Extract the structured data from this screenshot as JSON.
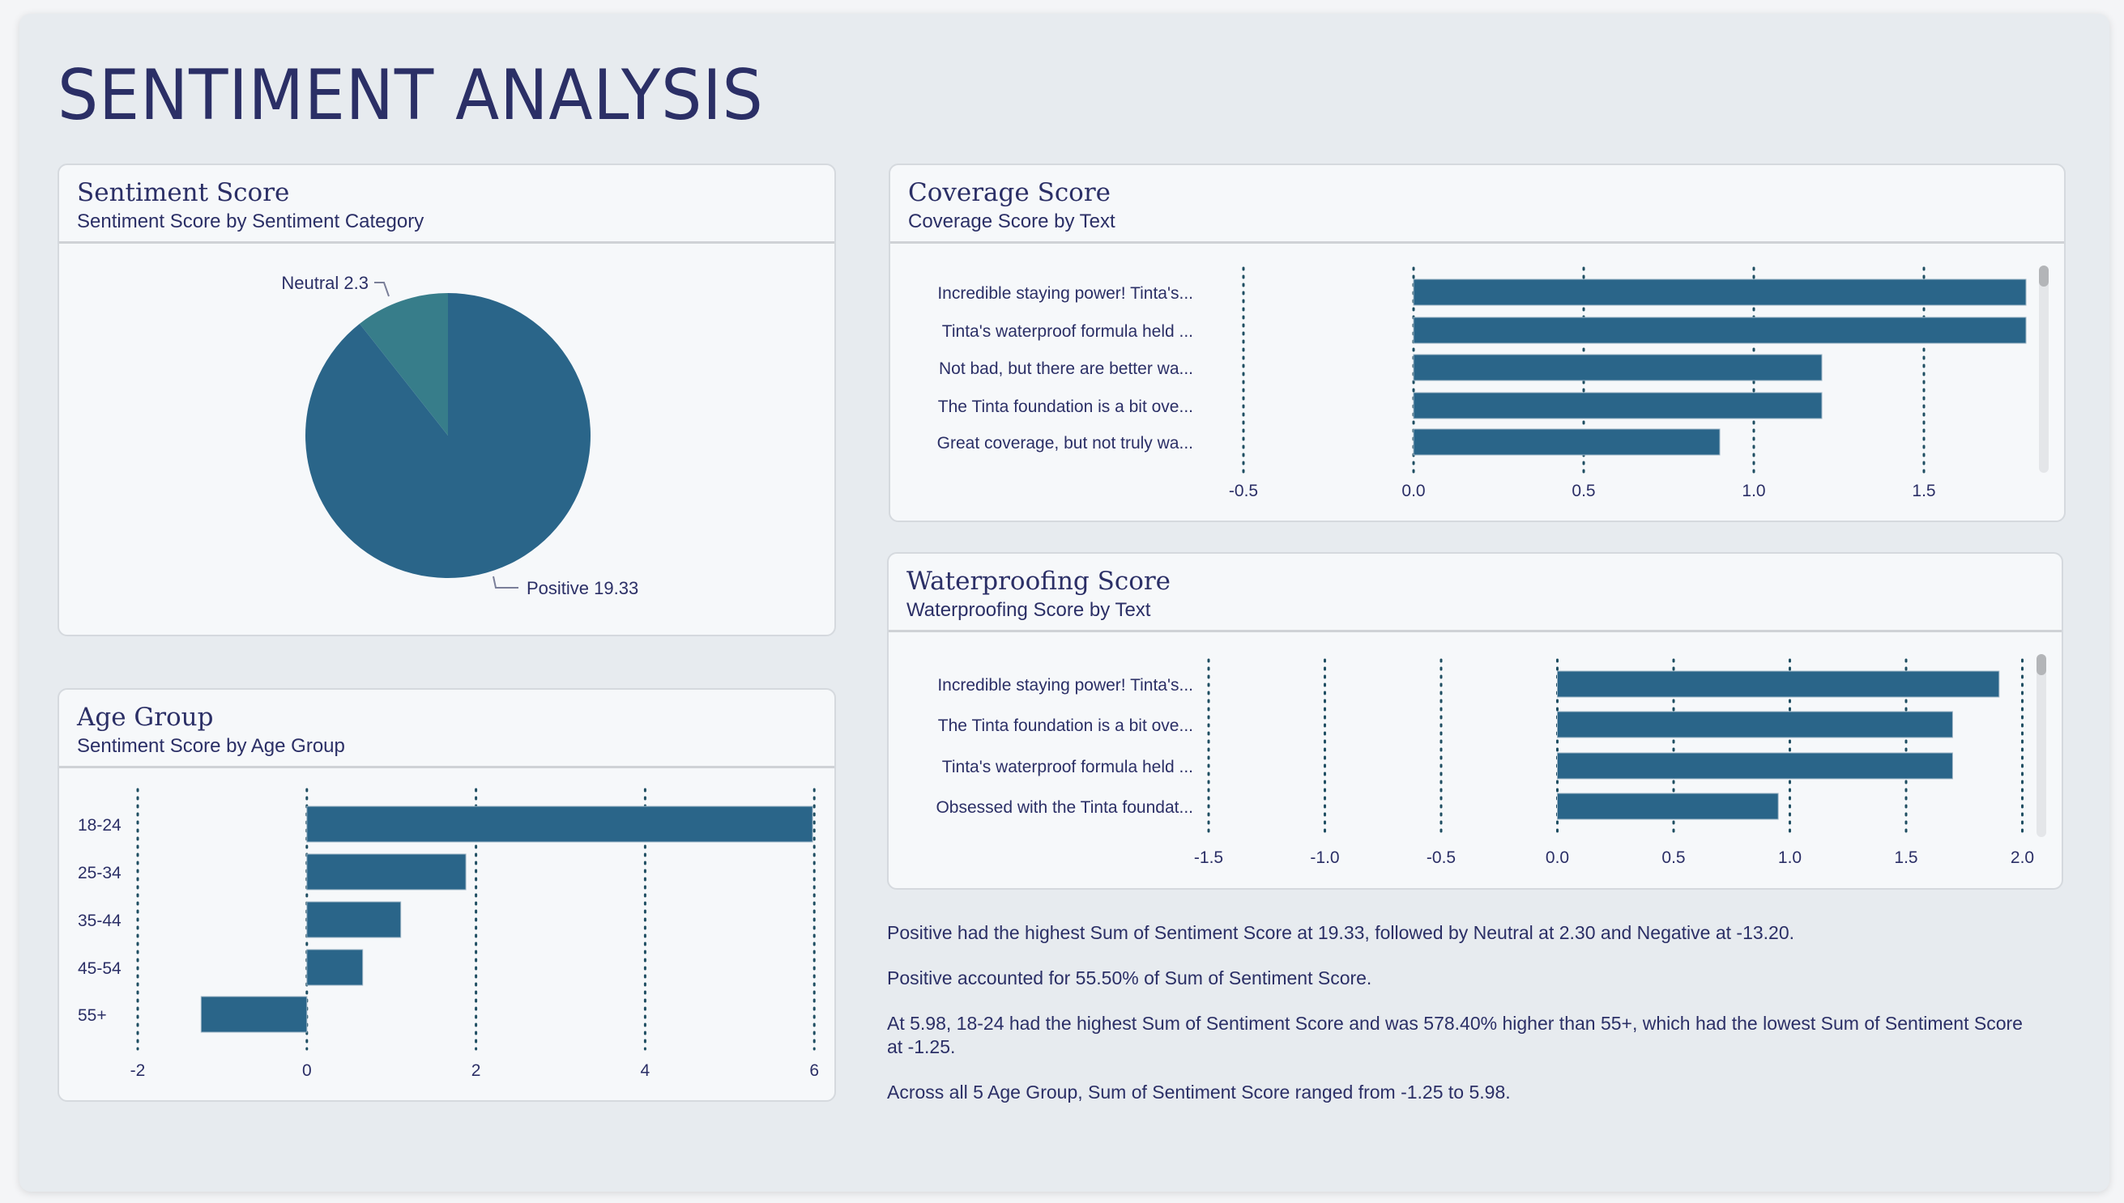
{
  "page": {
    "title": "SENTIMENT ANALYSIS"
  },
  "colors": {
    "bar": "#2a6589",
    "neutral_slice": "#377d8a",
    "text": "#2b2f66",
    "grid": "#1f4e62"
  },
  "cards": {
    "sentiment": {
      "title": "Sentiment Score",
      "subtitle": "Sentiment Score by Sentiment Category"
    },
    "age": {
      "title": "Age Group",
      "subtitle": "Sentiment Score by Age Group"
    },
    "coverage": {
      "title": "Coverage Score",
      "subtitle": "Coverage Score by Text"
    },
    "waterproofing": {
      "title": "Waterproofing Score",
      "subtitle": "Waterproofing Score by Text"
    }
  },
  "chart_data": [
    {
      "id": "sentiment",
      "type": "pie",
      "categories": [
        "Positive",
        "Neutral"
      ],
      "values": [
        19.33,
        2.3
      ],
      "labels": [
        "Positive 19.33",
        "Neutral 2.3"
      ]
    },
    {
      "id": "age",
      "type": "bar",
      "orientation": "horizontal",
      "categories": [
        "18-24",
        "25-34",
        "35-44",
        "45-54",
        "55+"
      ],
      "values": [
        5.98,
        1.88,
        1.11,
        0.66,
        -1.25
      ],
      "xlim": [
        -2,
        6
      ],
      "ticks": [
        "-2",
        "0",
        "2",
        "4",
        "6"
      ],
      "grid": true
    },
    {
      "id": "coverage",
      "type": "bar",
      "orientation": "horizontal",
      "categories": [
        "Incredible staying power! Tinta's...",
        "Tinta's waterproof formula held ...",
        "Not bad, but there are better wa...",
        "The Tinta foundation is a bit ove...",
        "Great coverage, but not truly wa..."
      ],
      "values": [
        1.8,
        1.8,
        1.2,
        1.2,
        0.9
      ],
      "xlim": [
        -0.5,
        1.8
      ],
      "ticks": [
        "-0.5",
        "0.0",
        "0.5",
        "1.0",
        "1.5"
      ],
      "grid": true
    },
    {
      "id": "waterproofing",
      "type": "bar",
      "orientation": "horizontal",
      "categories": [
        "Incredible staying power! Tinta's...",
        "The Tinta foundation is a bit ove...",
        "Tinta's waterproof formula held ...",
        "Obsessed with the Tinta foundat..."
      ],
      "values": [
        1.9,
        1.7,
        1.7,
        0.95
      ],
      "xlim": [
        -1.5,
        2.0
      ],
      "ticks": [
        "-1.5",
        "-1.0",
        "-0.5",
        "0.0",
        "0.5",
        "1.0",
        "1.5",
        "2.0"
      ],
      "grid": true
    }
  ],
  "insights": [
    "Positive had the highest Sum of Sentiment Score at 19.33, followed by Neutral at 2.30 and Negative at -13.20.",
    "Positive accounted for 55.50% of Sum of Sentiment Score.",
    "At 5.98, 18-24 had the highest Sum of Sentiment Score and was 578.40% higher than 55+, which had the lowest Sum of Sentiment Score at -1.25.",
    "Across all 5 Age Group, Sum of Sentiment Score ranged from -1.25 to 5.98."
  ]
}
